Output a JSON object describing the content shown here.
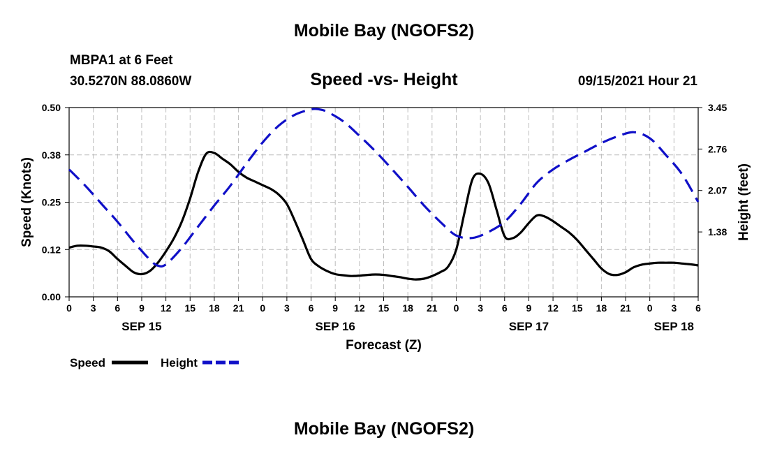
{
  "header": {
    "title": "Mobile Bay (NGOFS2)",
    "station": "MBPA1 at 6 Feet",
    "coords": "30.5270N  88.0860W",
    "subtitle": "Speed -vs- Height",
    "datetime": "09/15/2021 Hour 21",
    "footer_title": "Mobile Bay (NGOFS2)"
  },
  "chart_data": {
    "type": "line",
    "xlabel": "Forecast (Z)",
    "ylabel": "Speed (Knots)",
    "ylabel_right": "Height (feet)",
    "xlim": [
      0,
      78
    ],
    "ylim": [
      0,
      0.5
    ],
    "ylim_right": [
      0.3,
      3.45
    ],
    "x_ticks": [
      0,
      3,
      6,
      9,
      12,
      15,
      18,
      21,
      24,
      27,
      30,
      33,
      36,
      39,
      42,
      45,
      48,
      51,
      54,
      57,
      60,
      63,
      66,
      69,
      72,
      75,
      78
    ],
    "x_tick_labels": [
      "0",
      "3",
      "6",
      "9",
      "12",
      "15",
      "18",
      "21",
      "0",
      "3",
      "6",
      "9",
      "12",
      "15",
      "18",
      "21",
      "0",
      "3",
      "6",
      "9",
      "12",
      "15",
      "18",
      "21",
      "0",
      "3",
      "6"
    ],
    "y_ticks": [
      0,
      0.125,
      0.25,
      0.375,
      0.5
    ],
    "y_tick_labels": [
      "0.00",
      "0.12",
      "0.25",
      "0.38",
      "0.50"
    ],
    "y_right_ticks": [
      1.38,
      2.07,
      2.76,
      3.45
    ],
    "y_right_tick_labels": [
      "1.38",
      "2.07",
      "2.76",
      "3.45"
    ],
    "date_labels": [
      {
        "x": 9,
        "text": "SEP 15"
      },
      {
        "x": 33,
        "text": "SEP 16"
      },
      {
        "x": 57,
        "text": "SEP 17"
      },
      {
        "x": 75,
        "text": "SEP 18"
      }
    ],
    "grid": true,
    "legend_position": "bottom-left",
    "series": [
      {
        "name": "Speed",
        "axis": "left",
        "color": "#000000",
        "dash": false,
        "x": [
          0,
          1,
          2,
          3,
          4,
          5,
          6,
          7,
          8,
          9,
          10,
          11,
          12,
          13,
          14,
          15,
          16,
          17,
          18,
          19,
          20,
          21,
          22,
          23,
          24,
          25,
          26,
          27,
          28,
          29,
          30,
          31,
          32,
          33,
          34,
          35,
          36,
          37,
          38,
          39,
          40,
          41,
          42,
          43,
          44,
          45,
          46,
          47,
          48,
          49,
          50,
          51,
          52,
          53,
          54,
          55,
          56,
          57,
          58,
          59,
          60,
          61,
          62,
          63,
          64,
          65,
          66,
          67,
          68,
          69,
          70,
          71,
          72,
          73,
          74,
          75,
          76,
          77,
          78
        ],
        "y": [
          0.13,
          0.135,
          0.135,
          0.133,
          0.13,
          0.12,
          0.1,
          0.082,
          0.065,
          0.06,
          0.068,
          0.09,
          0.12,
          0.155,
          0.2,
          0.26,
          0.33,
          0.378,
          0.38,
          0.365,
          0.35,
          0.33,
          0.315,
          0.305,
          0.295,
          0.285,
          0.27,
          0.245,
          0.2,
          0.15,
          0.1,
          0.08,
          0.068,
          0.06,
          0.057,
          0.055,
          0.056,
          0.058,
          0.059,
          0.058,
          0.055,
          0.052,
          0.048,
          0.046,
          0.048,
          0.055,
          0.065,
          0.08,
          0.125,
          0.22,
          0.31,
          0.325,
          0.3,
          0.23,
          0.16,
          0.155,
          0.17,
          0.195,
          0.215,
          0.212,
          0.2,
          0.185,
          0.17,
          0.15,
          0.125,
          0.1,
          0.075,
          0.06,
          0.058,
          0.065,
          0.078,
          0.085,
          0.088,
          0.09,
          0.09,
          0.09,
          0.088,
          0.086,
          0.083
        ]
      },
      {
        "name": "Height",
        "axis": "right",
        "color": "#1010c8",
        "dash": true,
        "x": [
          0,
          2,
          4,
          6,
          8,
          10,
          11,
          12,
          14,
          16,
          18,
          20,
          22,
          24,
          26,
          28,
          30,
          31,
          32,
          34,
          36,
          38,
          40,
          42,
          44,
          46,
          48,
          50,
          52,
          54,
          56,
          58,
          60,
          62,
          64,
          66,
          68,
          70,
          72,
          74,
          76,
          78
        ],
        "y": [
          2.42,
          2.15,
          1.85,
          1.55,
          1.22,
          0.92,
          0.82,
          0.84,
          1.12,
          1.47,
          1.82,
          2.15,
          2.52,
          2.87,
          3.15,
          3.33,
          3.42,
          3.42,
          3.38,
          3.22,
          2.98,
          2.72,
          2.43,
          2.13,
          1.82,
          1.55,
          1.32,
          1.28,
          1.38,
          1.55,
          1.85,
          2.2,
          2.42,
          2.58,
          2.72,
          2.86,
          2.97,
          3.04,
          2.94,
          2.66,
          2.34,
          1.88
        ]
      }
    ]
  },
  "legend": {
    "speed_label": "Speed",
    "height_label": "Height"
  }
}
